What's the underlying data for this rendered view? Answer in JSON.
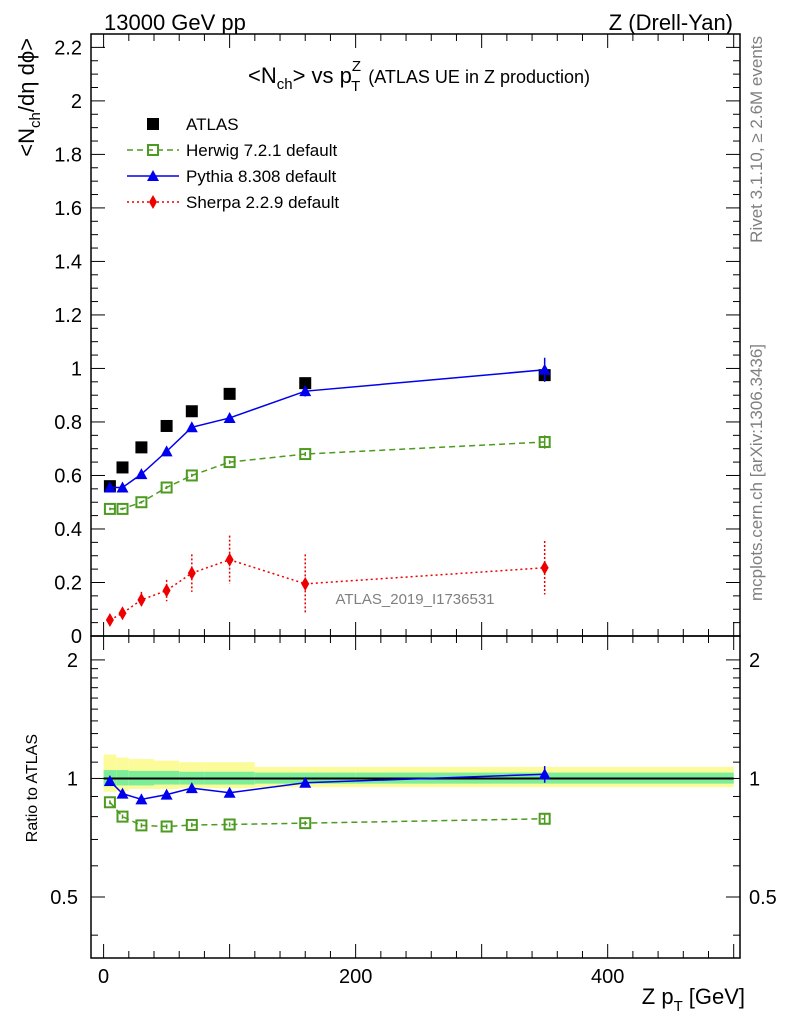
{
  "header": {
    "left": "13000 GeV pp",
    "right": "Z (Drell-Yan)"
  },
  "title": {
    "main_a": "<N",
    "main_sub": "ch",
    "main_b": "> vs p",
    "sup_z": "Z",
    "sub_t": "T",
    "tail": "(ATLAS UE in Z production)"
  },
  "side_text": {
    "rivet": "Rivet 3.1.10, ≥ 2.6M events",
    "mcplots": "mcplots.cern.ch [arXiv:1306.3436]"
  },
  "watermark": "ATLAS_2019_I1736531",
  "axes": {
    "ylabel_main": "<N",
    "ylabel_main_sub": "ch",
    "ylabel_main_tail": "/dη dϕ>",
    "ylabel_ratio": "Ratio to ATLAS",
    "xlabel_a": "Z p",
    "xlabel_sub": "T",
    "xlabel_b": "[GeV]"
  },
  "colors": {
    "atlas": "#000000",
    "herwig": "#4c9a1f",
    "pythia": "#0000ee",
    "sherpa": "#ee0000",
    "band_yellow": "#fbfb9a",
    "band_green": "#7cee9a"
  },
  "chart_data": {
    "type": "scatter",
    "x_label": "Z p_T [GeV]",
    "y_label": "<N_ch/dη dϕ>",
    "xlim": [
      -10,
      505
    ],
    "ylim_main": [
      0,
      2.25
    ],
    "ylim_ratio": [
      0.35,
      2.3
    ],
    "ratio_scale": "log",
    "x_ticks": [
      0,
      200,
      400
    ],
    "y_ticks_main": [
      0,
      0.2,
      0.4,
      0.6,
      0.8,
      1,
      1.2,
      1.4,
      1.6,
      1.8,
      2,
      2.2
    ],
    "y_ticks_ratio": [
      0.5,
      1,
      2
    ],
    "legend_position": "top-left",
    "series": [
      {
        "name": "ATLAS",
        "style": "square",
        "x": [
          5,
          15,
          30,
          50,
          70,
          100,
          160,
          350
        ],
        "y": [
          0.56,
          0.63,
          0.705,
          0.785,
          0.84,
          0.905,
          0.945,
          0.975
        ],
        "yerr": [
          0.01,
          0.01,
          0.01,
          0.01,
          0.01,
          0.01,
          0.01,
          0.02
        ]
      },
      {
        "name": "Herwig 7.2.1 default",
        "style": "open-square-dashed",
        "x": [
          5,
          15,
          30,
          50,
          70,
          100,
          160,
          350
        ],
        "y": [
          0.475,
          0.475,
          0.5,
          0.555,
          0.6,
          0.65,
          0.68,
          0.725
        ],
        "yerr": [
          0.005,
          0.005,
          0.005,
          0.006,
          0.006,
          0.007,
          0.008,
          0.025
        ]
      },
      {
        "name": "Pythia 8.308 default",
        "style": "triangle-solid",
        "x": [
          5,
          15,
          30,
          50,
          70,
          100,
          160,
          350
        ],
        "y": [
          0.555,
          0.555,
          0.605,
          0.69,
          0.78,
          0.815,
          0.915,
          0.995
        ],
        "yerr": [
          0.005,
          0.005,
          0.005,
          0.006,
          0.008,
          0.015,
          0.02,
          0.045
        ]
      },
      {
        "name": "Sherpa 2.2.9 default",
        "style": "diamond-dotted",
        "x": [
          5,
          15,
          30,
          50,
          70,
          100,
          160,
          350
        ],
        "y": [
          0.06,
          0.085,
          0.135,
          0.17,
          0.235,
          0.285,
          0.195,
          0.255
        ],
        "yerr": [
          0.01,
          0.02,
          0.03,
          0.04,
          0.07,
          0.09,
          0.11,
          0.1
        ]
      }
    ],
    "ratio_series": [
      {
        "name": "Herwig 7.2.1 default",
        "x": [
          5,
          15,
          30,
          50,
          70,
          100,
          160,
          350
        ],
        "y": [
          0.87,
          0.8,
          0.76,
          0.755,
          0.762,
          0.764,
          0.77,
          0.79
        ],
        "yerr": [
          0.01,
          0.01,
          0.01,
          0.01,
          0.01,
          0.01,
          0.01,
          0.025
        ]
      },
      {
        "name": "Pythia 8.308 default",
        "x": [
          5,
          15,
          30,
          50,
          70,
          100,
          160,
          350
        ],
        "y": [
          0.985,
          0.915,
          0.885,
          0.91,
          0.945,
          0.92,
          0.975,
          1.025
        ],
        "yerr": [
          0.01,
          0.01,
          0.01,
          0.01,
          0.01,
          0.015,
          0.02,
          0.05
        ]
      }
    ],
    "ratio_bands": {
      "edges": [
        0,
        10,
        20,
        40,
        60,
        80,
        120,
        200,
        500
      ],
      "yellow": [
        [
          0.925,
          1.15
        ],
        [
          0.93,
          1.13
        ],
        [
          0.94,
          1.12
        ],
        [
          0.94,
          1.11
        ],
        [
          0.945,
          1.1
        ],
        [
          0.945,
          1.1
        ],
        [
          0.95,
          1.07
        ],
        [
          0.95,
          1.07
        ]
      ],
      "green": [
        [
          0.955,
          1.05
        ],
        [
          0.96,
          1.05
        ],
        [
          0.96,
          1.045
        ],
        [
          0.965,
          1.045
        ],
        [
          0.965,
          1.04
        ],
        [
          0.965,
          1.04
        ],
        [
          0.97,
          1.035
        ],
        [
          0.97,
          1.035
        ]
      ]
    }
  }
}
